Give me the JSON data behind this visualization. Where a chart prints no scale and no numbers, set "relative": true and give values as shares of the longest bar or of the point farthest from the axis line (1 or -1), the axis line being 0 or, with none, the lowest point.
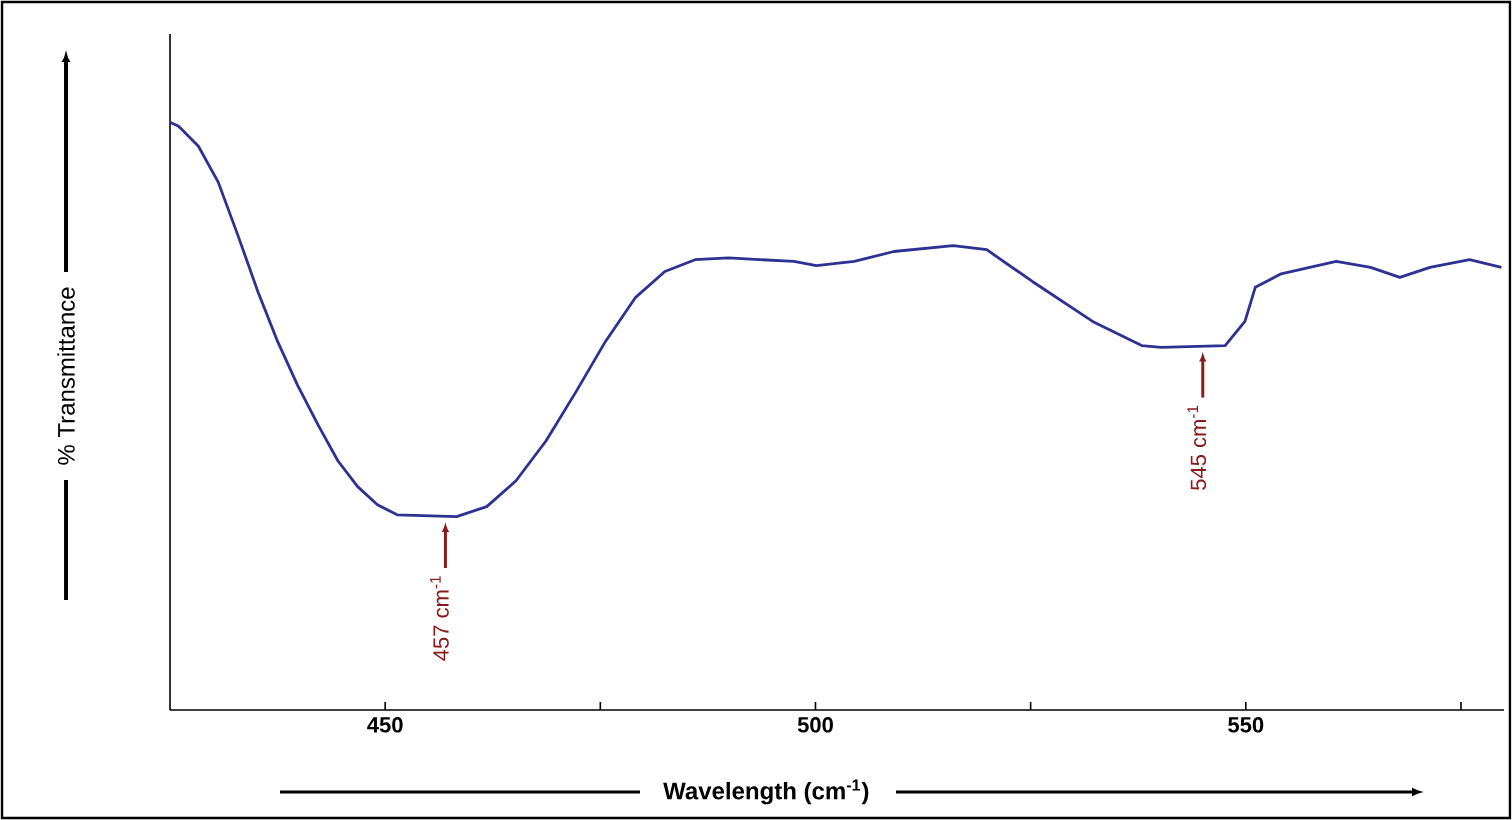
{
  "chart_data": {
    "type": "line",
    "relative": true,
    "xlabel": "Wavelength (cm$^{-1}$)",
    "ylabel": "% Transmittance",
    "x": [
      425,
      426.0,
      428.3,
      430.6,
      432.9,
      435.2,
      437.5,
      439.8,
      442.2,
      444.5,
      446.8,
      449.1,
      451.4,
      458.3,
      461.8,
      465.2,
      468.7,
      472.2,
      475.6,
      479.1,
      482.5,
      486.0,
      489.9,
      497.5,
      500.1,
      504.5,
      509.1,
      516.0,
      519.9,
      525.2,
      532.2,
      537.9,
      540.2,
      547.6,
      549.9,
      551.1,
      554.1,
      560.5,
      564.5,
      567.9,
      571.4,
      576.0,
      579.7
    ],
    "series": [
      {
        "color": "#2e3192",
        "values": [
          1.0,
          0.993,
          0.959,
          0.898,
          0.807,
          0.712,
          0.627,
          0.553,
          0.485,
          0.424,
          0.38,
          0.349,
          0.332,
          0.329,
          0.346,
          0.39,
          0.458,
          0.542,
          0.627,
          0.702,
          0.746,
          0.766,
          0.769,
          0.763,
          0.756,
          0.763,
          0.78,
          0.79,
          0.783,
          0.729,
          0.661,
          0.62,
          0.617,
          0.62,
          0.661,
          0.719,
          0.742,
          0.763,
          0.753,
          0.736,
          0.753,
          0.766,
          0.753
        ]
      }
    ],
    "xlim": [
      425,
      580
    ],
    "xticks": [
      450,
      {
        "value": 475,
        "label": null
      },
      500,
      {
        "value": 525,
        "label": null
      },
      550,
      {
        "value": 575,
        "label": null
      }
    ],
    "annotations": [
      {
        "text": "457 cm$^{-1}$",
        "x": 457,
        "y": 0.33
      },
      {
        "text": "545 cm$^{-1}$",
        "x": 545,
        "y": 0.62
      }
    ]
  }
}
